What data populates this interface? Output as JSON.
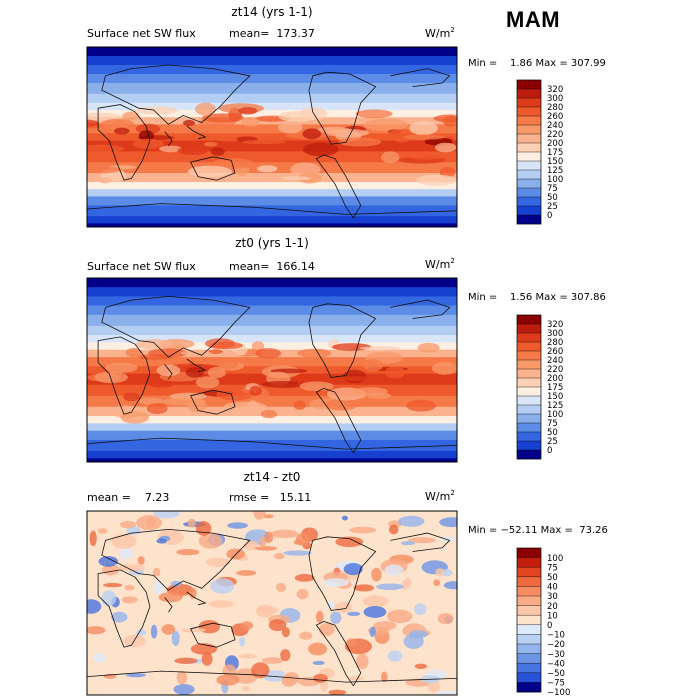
{
  "page": {
    "season": "MAM"
  },
  "chart_data": [
    {
      "type": "heatmap",
      "title": "zt14 (yrs 1-1)",
      "field": "Surface net SW flux",
      "stat_text": "mean=  173.37",
      "units": "W/m",
      "units_exp": "2",
      "min_max_text": "Min =    1.86 Max = 307.99",
      "palette": "abs",
      "mean": 173.37,
      "min": 1.86,
      "max": 307.99,
      "colorbar_levels": [
        "320",
        "300",
        "280",
        "260",
        "240",
        "220",
        "200",
        "175",
        "150",
        "125",
        "100",
        "75",
        "50",
        "25",
        "0"
      ]
    },
    {
      "type": "heatmap",
      "title": "zt0 (yrs 1-1)",
      "field": "Surface net SW flux",
      "stat_text": "mean=  166.14",
      "units": "W/m",
      "units_exp": "2",
      "min_max_text": "Min =    1.56 Max = 307.86",
      "palette": "abs",
      "mean": 166.14,
      "min": 1.56,
      "max": 307.86,
      "colorbar_levels": [
        "320",
        "300",
        "280",
        "260",
        "240",
        "220",
        "200",
        "175",
        "150",
        "125",
        "100",
        "75",
        "50",
        "25",
        "0"
      ]
    },
    {
      "type": "heatmap",
      "title": "zt14 - zt0",
      "mean_text": "mean =    7.23",
      "rmse_text": "rmse =   15.11",
      "units": "W/m",
      "units_exp": "2",
      "min_max_text": "Min = −52.11 Max =  73.26",
      "palette": "diff",
      "mean": 7.23,
      "rmse": 15.11,
      "min": -52.11,
      "max": 73.26,
      "colorbar_levels": [
        "100",
        "75",
        "50",
        "40",
        "30",
        "20",
        "10",
        "0",
        "−10",
        "−20",
        "−30",
        "−40",
        "−50",
        "−75",
        "−100"
      ]
    }
  ],
  "colors": {
    "abs": [
      "#8b0000",
      "#bd1d0c",
      "#dd3a1a",
      "#ef5a2c",
      "#f57a48",
      "#f8996a",
      "#fbb38f",
      "#fcd0b4",
      "#fdf0e2",
      "#d8e5f8",
      "#b3cdf3",
      "#8ab0ec",
      "#5c8ce6",
      "#3366e0",
      "#1540d0",
      "#00008b"
    ],
    "diff": [
      "#8b0000",
      "#c41e0e",
      "#e04420",
      "#ee6a3e",
      "#f68d62",
      "#f9ab86",
      "#fbc6a9",
      "#fde2cc",
      "#ddeaf9",
      "#b9d1f3",
      "#93b4ec",
      "#6d95e6",
      "#4874df",
      "#2852d6",
      "#00008b"
    ]
  }
}
